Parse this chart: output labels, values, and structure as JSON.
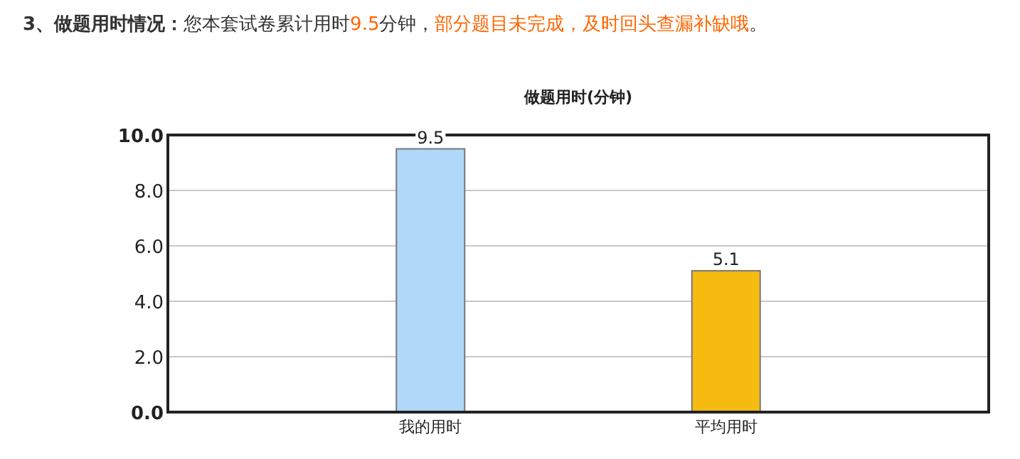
{
  "chart_data": {
    "type": "bar",
    "title": "做题用时(分钟)",
    "annotations": [
      "3、做题用时情况：",
      "您本套试卷累计用时",
      "9.5",
      "分钟，",
      "部分题目未完成，及时回头查漏补缺哦",
      "。"
    ],
    "categories": [
      "我的用时",
      "平均用时"
    ],
    "values": [
      9.5,
      5.1
    ],
    "colors": [
      "#b0d8f8",
      "#f5bb10"
    ],
    "ylim": [
      0,
      10
    ],
    "yticks": [
      {
        "value": 0,
        "label": "0.0"
      },
      {
        "value": 2,
        "label": "2.0"
      },
      {
        "value": 4,
        "label": "4.0"
      },
      {
        "value": 6,
        "label": "6.0"
      },
      {
        "value": 8,
        "label": "8.0"
      },
      {
        "value": 10,
        "label": "10.0"
      }
    ],
    "grid": "y",
    "data_labels": true
  }
}
